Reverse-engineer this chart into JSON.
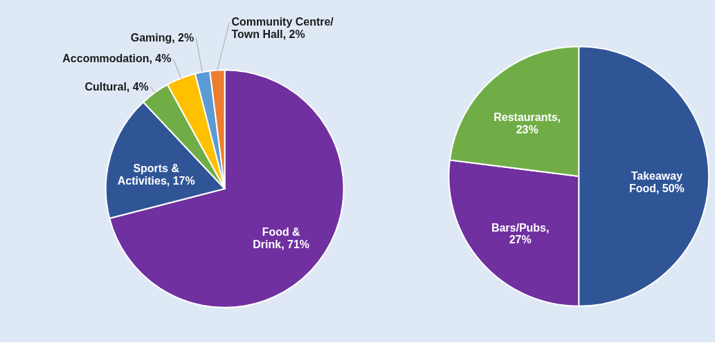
{
  "chart_data": [
    {
      "type": "pie",
      "categories": [
        "Food & Drink, 71%",
        "Sports & Activities, 17%",
        "Cultural, 4%",
        "Accommodation, 4%",
        "Gaming, 2%",
        "Community Centre/ Town Hall, 2%"
      ],
      "values": [
        71,
        17,
        4,
        4,
        2,
        2
      ],
      "colors": [
        "#7030a0",
        "#2f5597",
        "#70ad47",
        "#ffc000",
        "#5b9bd5",
        "#ed7d31"
      ]
    },
    {
      "type": "pie",
      "categories": [
        "Takeaway Food, 50%",
        "Bars/Pubs, 27%",
        "Restaurants, 23%"
      ],
      "values": [
        50,
        27,
        23
      ],
      "colors": [
        "#2f5597",
        "#7030a0",
        "#70ad47"
      ]
    }
  ]
}
